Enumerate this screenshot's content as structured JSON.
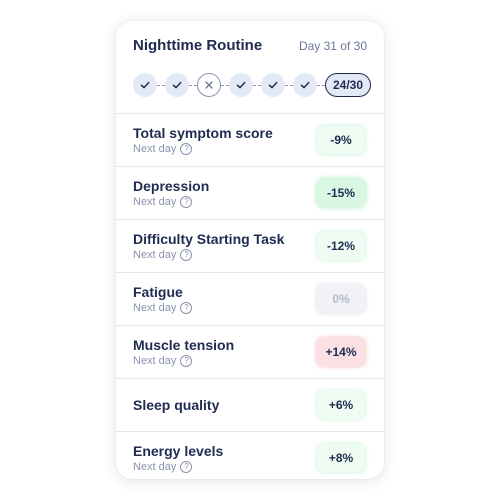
{
  "routine": {
    "title": "Nighttime Routine",
    "day_label": "Day 31 of 30",
    "progress_counter": "24/30",
    "recent_days": [
      "done",
      "done",
      "missed",
      "done",
      "done",
      "done"
    ]
  },
  "metrics": [
    {
      "name": "Total symptom score",
      "sub": "Next day",
      "change": "-9%",
      "tone": "light"
    },
    {
      "name": "Depression",
      "sub": "Next day",
      "change": "-15%",
      "tone": "strong"
    },
    {
      "name": "Difficulty Starting Task",
      "sub": "Next day",
      "change": "-12%",
      "tone": "light"
    },
    {
      "name": "Fatigue",
      "sub": "Next day",
      "change": "0%",
      "tone": "neutral"
    },
    {
      "name": "Muscle tension",
      "sub": "Next day",
      "change": "+14%",
      "tone": "bad"
    },
    {
      "name": "Sleep quality",
      "sub": "",
      "change": "+6%",
      "tone": "light"
    },
    {
      "name": "Energy levels",
      "sub": "Next day",
      "change": "+8%",
      "tone": "light"
    }
  ],
  "help_glyph": "?",
  "colors": {
    "text": "#1f2b50",
    "muted": "#8a92ad",
    "dot_bg": "#e3e9f7",
    "positive_light": "#effcf3",
    "positive_strong": "#d9f7e3",
    "neutral": "#f1f2f6",
    "negative": "#fbe1e3"
  }
}
